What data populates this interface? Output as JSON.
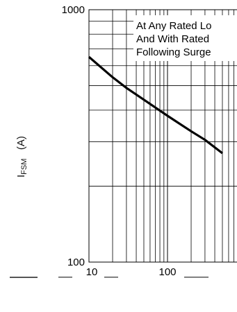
{
  "chart_data": {
    "type": "line",
    "xscale": "log",
    "yscale": "log",
    "xlim": [
      10,
      1000
    ],
    "ylim": [
      100,
      1000
    ],
    "x_ticks": [
      "10",
      "100"
    ],
    "y_ticks": [
      "1000",
      "100"
    ],
    "ylabel": "I",
    "ylabel_sub": "FSM",
    "ylabel_unit": "(A)",
    "annotation_lines": [
      "At Any Rated Lo",
      "And With Rated",
      "Following Surge"
    ],
    "series": [
      {
        "x": [
          10,
          20,
          30,
          50,
          100,
          200,
          300,
          500
        ],
        "y": [
          650,
          540,
          490,
          440,
          380,
          330,
          305,
          270
        ]
      }
    ],
    "grid": true,
    "line_color": "#000000"
  }
}
